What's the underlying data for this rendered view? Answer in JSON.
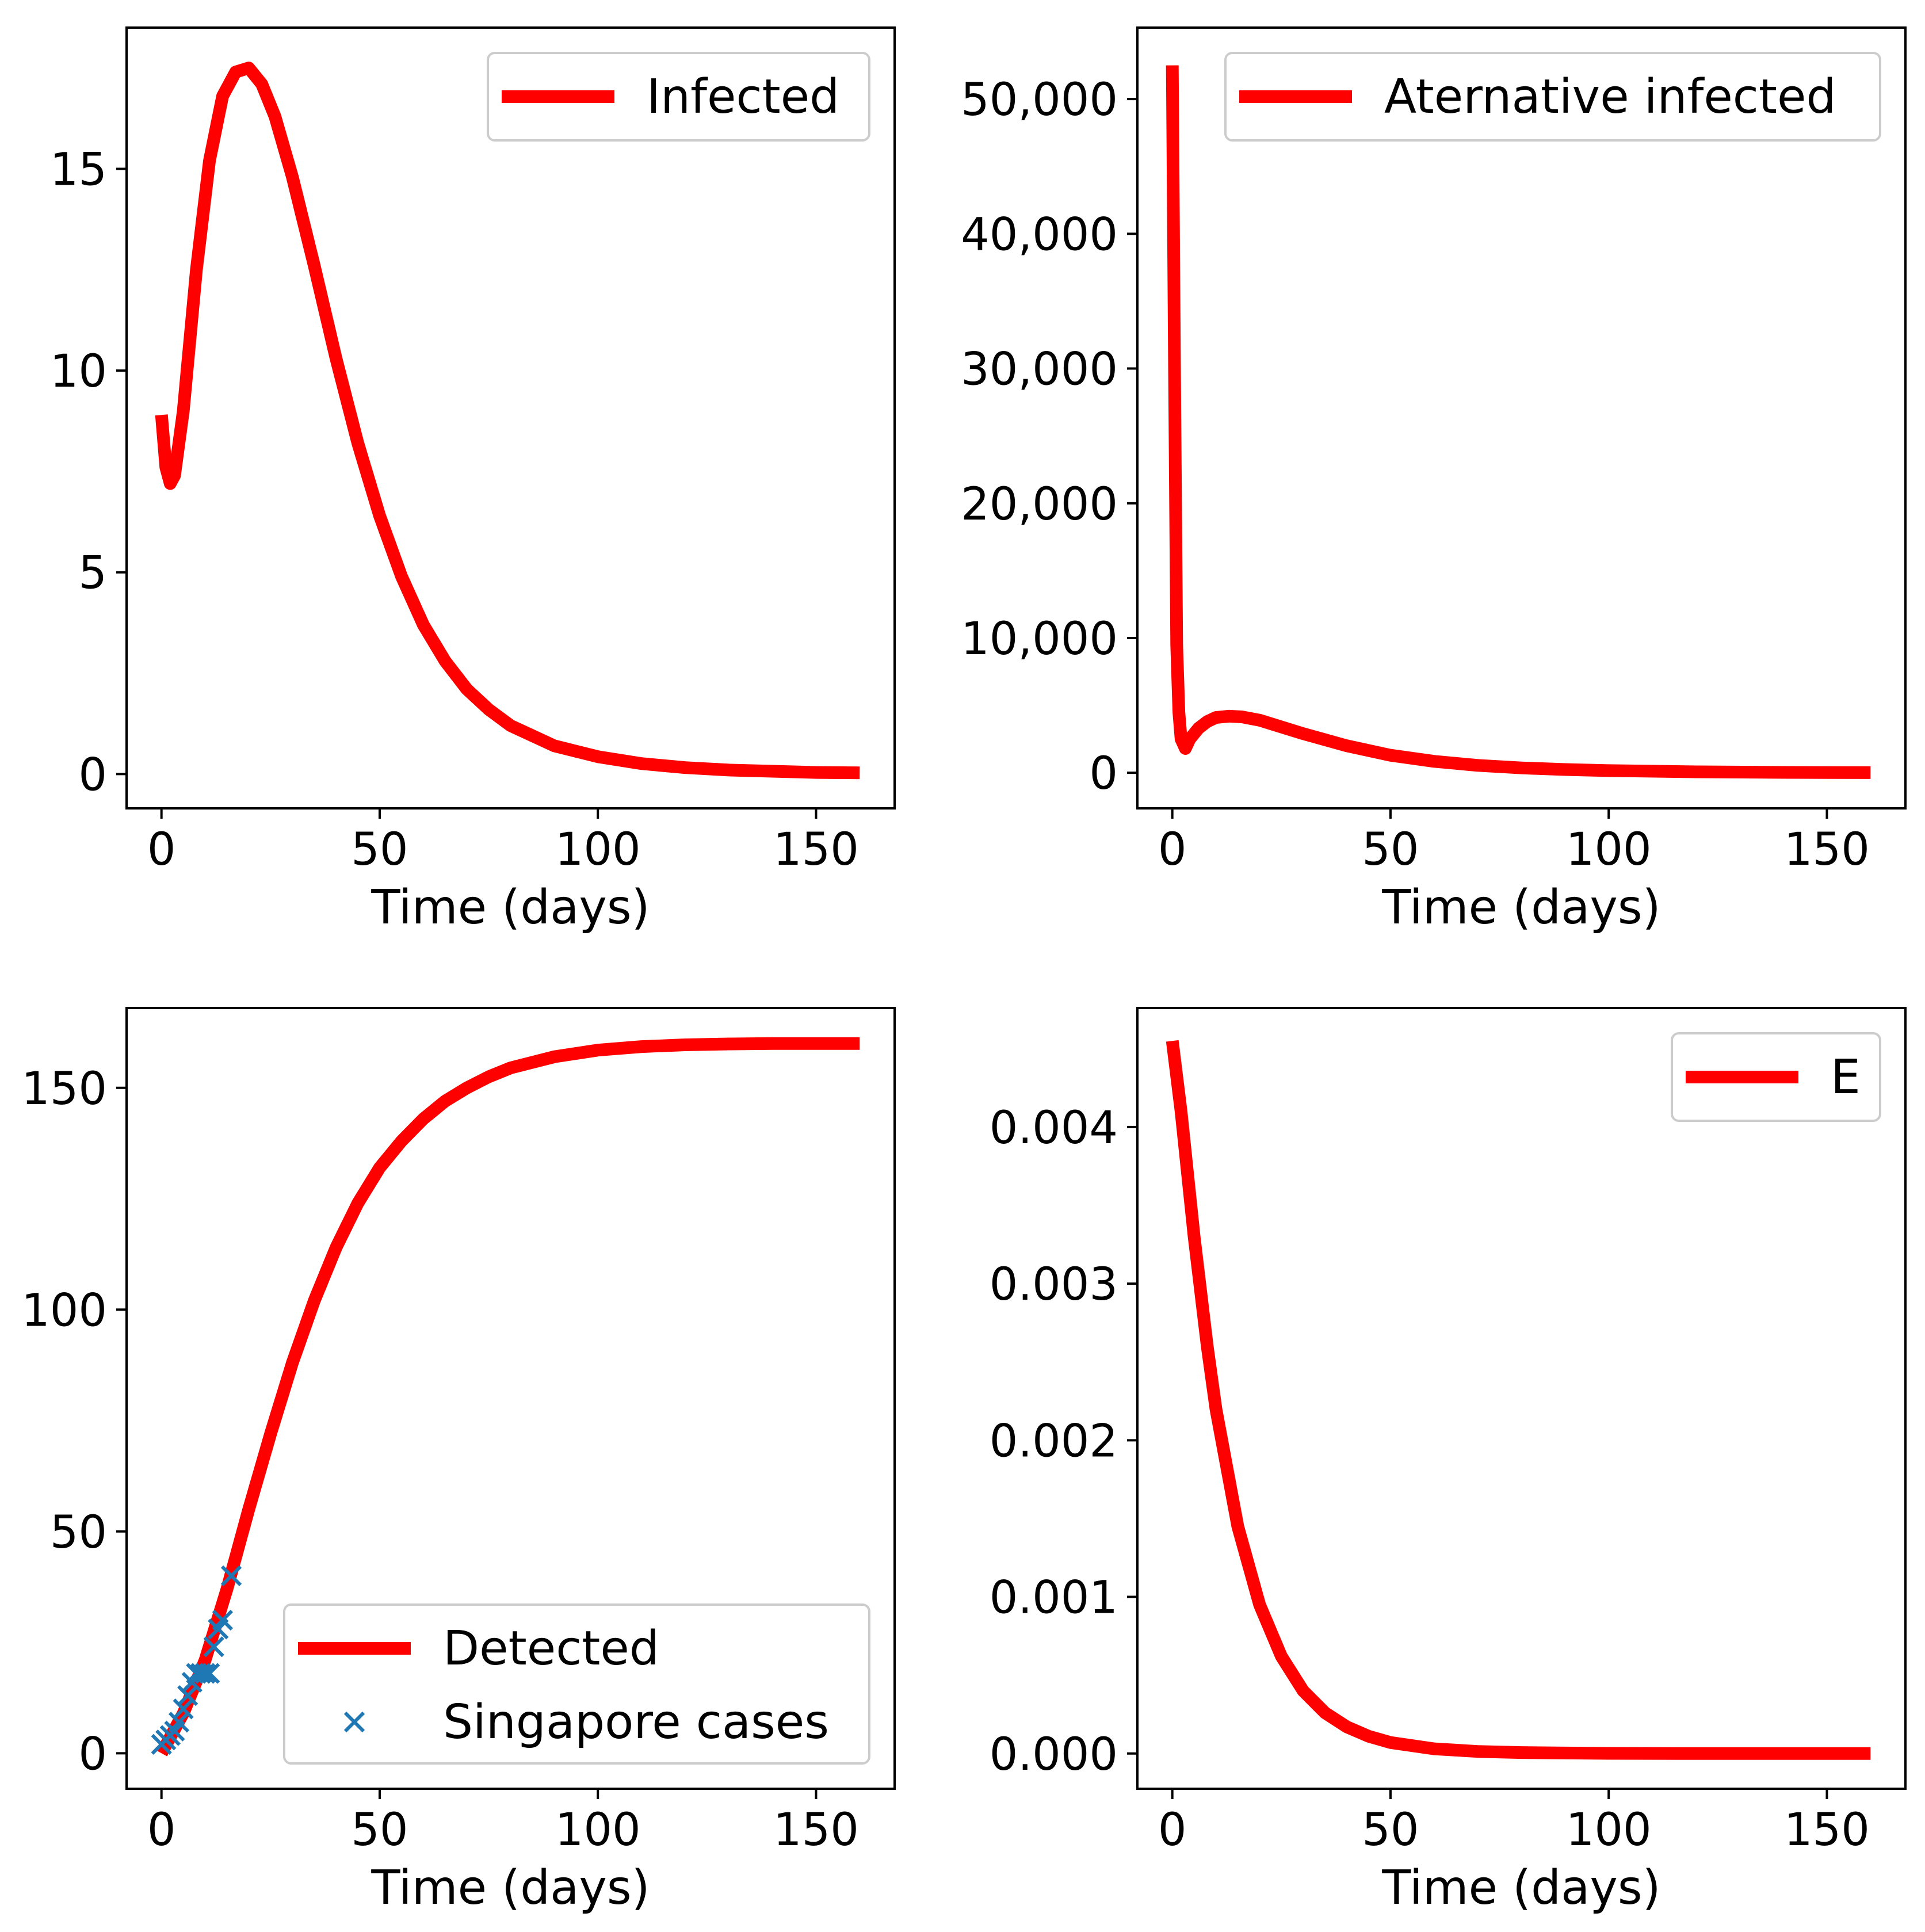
{
  "chart_data": [
    {
      "type": "line",
      "id": "infected",
      "xlabel": "Time (days)",
      "ylabel": "",
      "xlim": [
        -8,
        168
      ],
      "ylim": [
        -0.85,
        18.5
      ],
      "xticks": [
        0,
        50,
        100,
        150
      ],
      "xtick_labels": [
        "0",
        "50",
        "100",
        "150"
      ],
      "yticks": [
        0,
        5,
        10,
        15
      ],
      "ytick_labels": [
        "0",
        "5",
        "10",
        "15"
      ],
      "legend_position": "top-right",
      "series": [
        {
          "name": "Infected",
          "color": "#ff0000",
          "x": [
            0,
            1,
            2,
            3,
            5,
            8,
            11,
            14,
            17,
            20,
            23,
            26,
            30,
            35,
            40,
            45,
            50,
            55,
            60,
            65,
            70,
            75,
            80,
            90,
            100,
            110,
            120,
            130,
            140,
            150,
            160
          ],
          "y": [
            8.9,
            7.6,
            7.2,
            7.4,
            9.0,
            12.5,
            15.2,
            16.8,
            17.4,
            17.5,
            17.1,
            16.3,
            14.8,
            12.6,
            10.3,
            8.2,
            6.4,
            4.9,
            3.7,
            2.8,
            2.1,
            1.6,
            1.2,
            0.7,
            0.43,
            0.26,
            0.16,
            0.1,
            0.07,
            0.04,
            0.03
          ]
        }
      ]
    },
    {
      "type": "line",
      "id": "alternative",
      "xlabel": "Time (days)",
      "ylabel": "",
      "xlim": [
        -8,
        168
      ],
      "ylim": [
        -2640,
        55300
      ],
      "xticks": [
        0,
        50,
        100,
        150
      ],
      "xtick_labels": [
        "0",
        "50",
        "100",
        "150"
      ],
      "yticks": [
        0,
        10000,
        20000,
        30000,
        40000,
        50000
      ],
      "ytick_labels": [
        "0",
        "10,000",
        "20,000",
        "30,000",
        "40,000",
        "50,000"
      ],
      "legend_position": "top-right",
      "series": [
        {
          "name": "Aternative infected",
          "color": "#ff0000",
          "x": [
            0,
            0.5,
            1,
            1.5,
            2,
            3,
            4,
            6,
            8,
            10,
            13,
            16,
            20,
            25,
            30,
            40,
            50,
            60,
            70,
            80,
            90,
            100,
            120,
            140,
            160
          ],
          "y": [
            52500,
            30000,
            9500,
            4500,
            2500,
            1800,
            2500,
            3300,
            3800,
            4100,
            4200,
            4150,
            3900,
            3400,
            2900,
            2000,
            1300,
            850,
            550,
            360,
            240,
            160,
            70,
            30,
            10
          ]
        }
      ]
    },
    {
      "type": "line",
      "id": "detected",
      "xlabel": "Time (days)",
      "ylabel": "",
      "xlim": [
        -8,
        168
      ],
      "ylim": [
        -8,
        168
      ],
      "xticks": [
        0,
        50,
        100,
        150
      ],
      "xtick_labels": [
        "0",
        "50",
        "100",
        "150"
      ],
      "yticks": [
        0,
        50,
        100,
        150
      ],
      "ytick_labels": [
        "0",
        "50",
        "100",
        "150"
      ],
      "legend_position": "lower-right",
      "series": [
        {
          "name": "Detected",
          "color": "#ff0000",
          "x": [
            0,
            5,
            10,
            15,
            20,
            25,
            30,
            35,
            40,
            45,
            50,
            55,
            60,
            65,
            70,
            75,
            80,
            90,
            100,
            110,
            120,
            130,
            140,
            150,
            160
          ],
          "y": [
            0,
            9,
            21,
            37,
            55,
            72,
            88,
            102,
            114,
            124,
            132,
            138,
            143,
            147,
            150,
            152.5,
            154.5,
            157,
            158.5,
            159.3,
            159.7,
            159.9,
            160,
            160,
            160
          ]
        }
      ],
      "scatter": {
        "name": "Singapore cases",
        "color": "#1f77b4",
        "x": [
          0,
          1,
          2,
          3,
          4,
          5,
          6,
          7,
          8,
          9,
          10,
          11,
          12,
          13,
          14,
          16
        ],
        "y": [
          2,
          3,
          4,
          5,
          7,
          10,
          13,
          16,
          18,
          18,
          18,
          18,
          24,
          28,
          30,
          40
        ]
      }
    },
    {
      "type": "line",
      "id": "e",
      "xlabel": "Time (days)",
      "ylabel": "",
      "xlim": [
        -8,
        168
      ],
      "ylim": [
        -0.000225,
        0.00476
      ],
      "xticks": [
        0,
        50,
        100,
        150
      ],
      "xtick_labels": [
        "0",
        "50",
        "100",
        "150"
      ],
      "yticks": [
        0,
        0.001,
        0.002,
        0.003,
        0.004
      ],
      "ytick_labels": [
        "0.000",
        "0.001",
        "0.002",
        "0.003",
        "0.004"
      ],
      "legend_position": "top-right",
      "series": [
        {
          "name": "E",
          "color": "#ff0000",
          "x": [
            0,
            2,
            5,
            8,
            10,
            15,
            20,
            25,
            30,
            35,
            40,
            45,
            50,
            60,
            70,
            80,
            90,
            100,
            120,
            140,
            160
          ],
          "y": [
            0.00455,
            0.0041,
            0.0033,
            0.0026,
            0.0022,
            0.00145,
            0.00095,
            0.00062,
            0.0004,
            0.00026,
            0.00017,
            0.00011,
            7e-05,
            3e-05,
            1.3e-05,
            6e-06,
            3e-06,
            1e-06,
            0,
            0,
            0
          ]
        }
      ]
    }
  ]
}
